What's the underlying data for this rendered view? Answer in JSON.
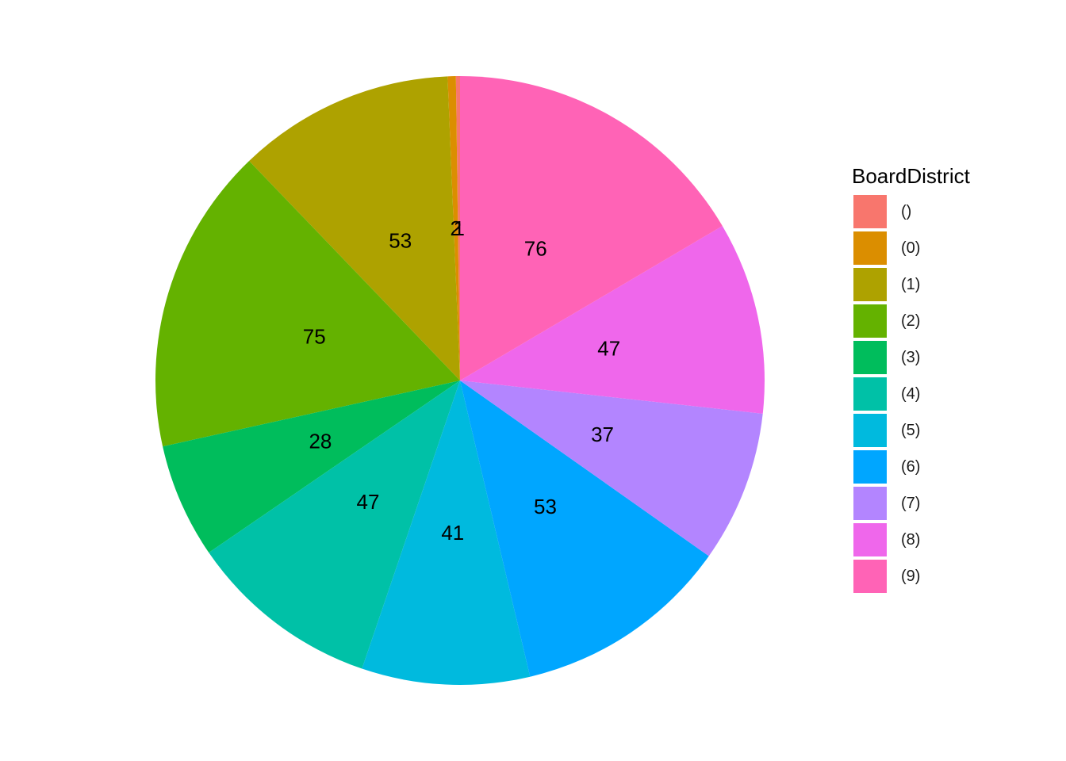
{
  "chart_data": {
    "type": "pie",
    "title": "",
    "legend_title": "BoardDistrict",
    "legend_position": "right",
    "categories": [
      "()",
      "(0)",
      "(1)",
      "(2)",
      "(3)",
      "(4)",
      "(5)",
      "(6)",
      "(7)",
      "(8)",
      "(9)"
    ],
    "values": [
      1,
      2,
      53,
      75,
      28,
      47,
      41,
      53,
      37,
      47,
      76
    ],
    "value_labels": [
      "1",
      "2",
      "53",
      "75",
      "28",
      "47",
      "41",
      "53",
      "37",
      "47",
      "76"
    ],
    "colors": [
      "#F8766D",
      "#DB8E00",
      "#AEA200",
      "#64B200",
      "#00BD5C",
      "#00C1A7",
      "#00BADE",
      "#00A6FF",
      "#B385FF",
      "#EF67EB",
      "#FF63B6"
    ],
    "direction": "counterclockwise",
    "start": "12 o'clock"
  }
}
